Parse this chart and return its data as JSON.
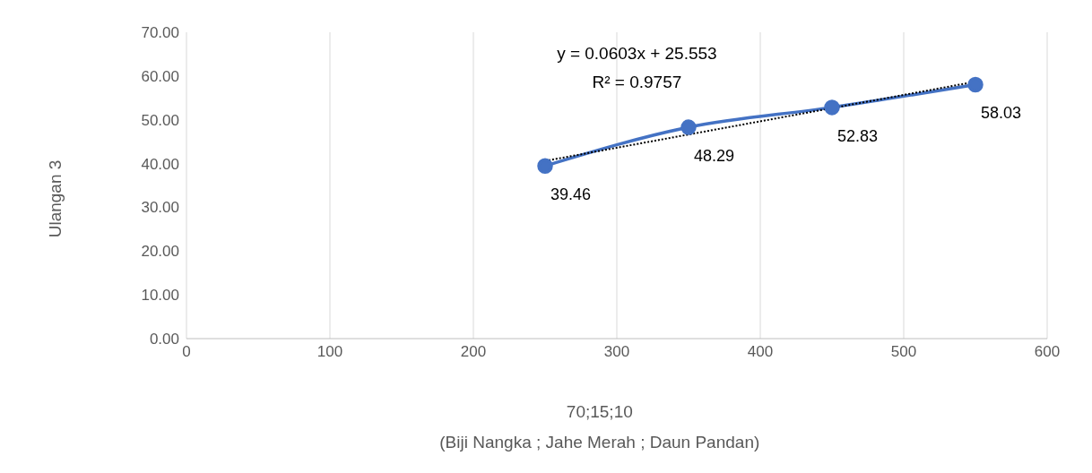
{
  "chart_data": {
    "type": "line",
    "ylabel": "Ulangan 3",
    "xlabel": "70;15;10\n(Biji Nangka ; Jahe Merah ; Daun Pandan)",
    "annotations": [
      "y = 0.0603x + 25.553",
      "R² = 0.9757"
    ],
    "x": [
      250,
      350,
      450,
      550
    ],
    "series": [
      {
        "color": "#4472c4",
        "values": [
          39.46,
          48.29,
          52.83,
          58.03
        ],
        "marker": "circle",
        "line_style": "solid",
        "data_labels": true
      },
      {
        "type": "line",
        "x": [
          250,
          550
        ],
        "values": [
          40.6,
          58.7
        ],
        "color": "#000000",
        "marker": "none",
        "line_style": "dotted"
      }
    ],
    "xlim": [
      0,
      600
    ],
    "xticks": [
      0,
      100,
      200,
      300,
      400,
      500,
      600
    ],
    "ylim": [
      0,
      70
    ],
    "yticks": [
      {
        "value": 0,
        "label": "0.00"
      },
      {
        "value": 10,
        "label": "10.00"
      },
      {
        "value": 20,
        "label": "20.00"
      },
      {
        "value": 30,
        "label": "30.00"
      },
      {
        "value": 40,
        "label": "40.00"
      },
      {
        "value": 50,
        "label": "50.00"
      },
      {
        "value": 60,
        "label": "60.00"
      },
      {
        "value": 70,
        "label": "70.00"
      }
    ],
    "grid": "x",
    "legend": false
  }
}
